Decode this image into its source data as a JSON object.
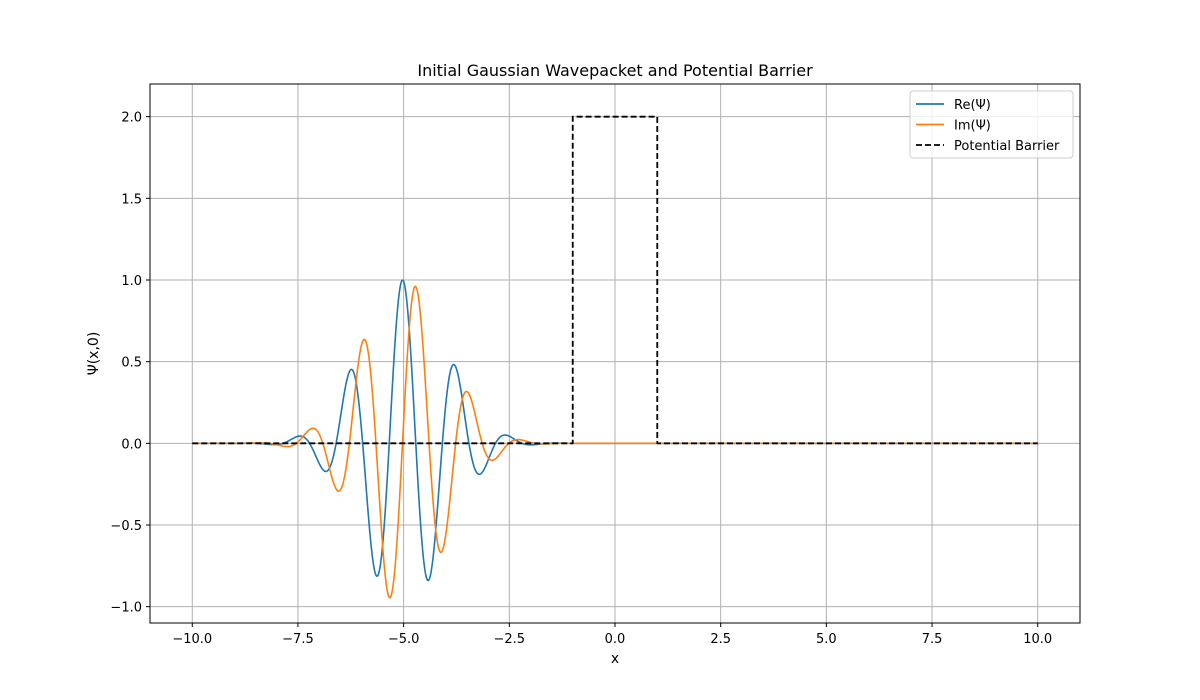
{
  "chart_data": {
    "type": "line",
    "title": "Initial Gaussian Wavepacket and Potential Barrier",
    "xlabel": "x",
    "ylabel": "Ψ(x,0)",
    "xlim": [
      -11,
      11
    ],
    "ylim": [
      -1.1,
      2.2
    ],
    "xticks": [
      -10.0,
      -7.5,
      -5.0,
      -2.5,
      0.0,
      2.5,
      5.0,
      7.5,
      10.0
    ],
    "xtick_labels": [
      "−10.0",
      "−7.5",
      "−5.0",
      "−2.5",
      "0.0",
      "2.5",
      "5.0",
      "7.5",
      "10.0"
    ],
    "yticks": [
      -1.0,
      -0.5,
      0.0,
      0.5,
      1.0,
      1.5,
      2.0
    ],
    "ytick_labels": [
      "−1.0",
      "−0.5",
      "0.0",
      "0.5",
      "1.0",
      "1.5",
      "2.0"
    ],
    "grid": true,
    "legend_position": "top-right",
    "wavepacket": {
      "x0": -5.0,
      "sigma": 1.0,
      "k0": 5.0,
      "amplitude": 1.0,
      "x_range": [
        -10,
        10
      ]
    },
    "series": [
      {
        "name": "Re(Ψ)",
        "color": "#1f77b4",
        "style": "solid",
        "function": "re"
      },
      {
        "name": "Im(Ψ)",
        "color": "#ff7f0e",
        "style": "solid",
        "function": "im"
      },
      {
        "name": "Potential Barrier",
        "color": "#000000",
        "style": "dashed",
        "x": [
          -10,
          -1,
          -1,
          1,
          1,
          10
        ],
        "y": [
          0,
          0,
          2,
          2,
          0,
          0
        ]
      }
    ]
  }
}
